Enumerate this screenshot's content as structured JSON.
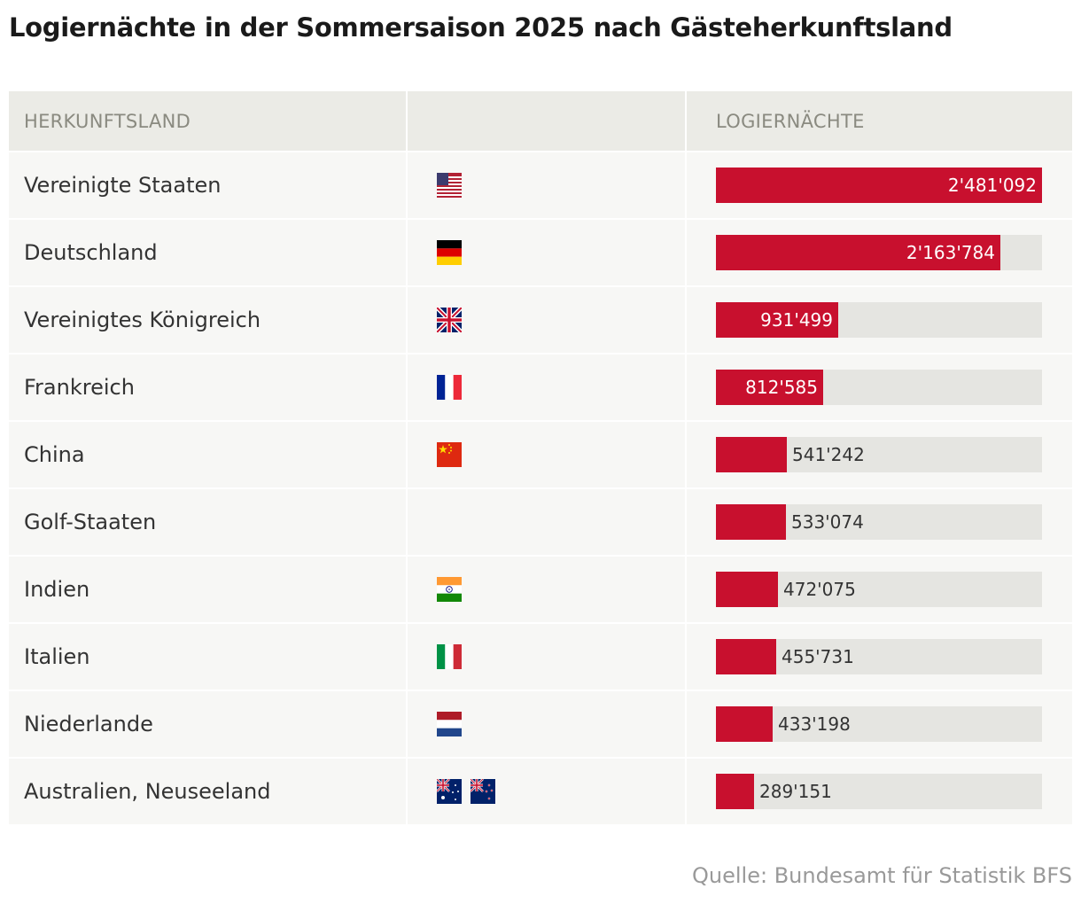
{
  "title": "Logiernächte in der Sommersaison 2025 nach Gästeherkunftsland",
  "header": {
    "col_country": "HERKUNFTSLAND",
    "col_flag": "",
    "col_value": "LOGIERNÄCHTE"
  },
  "source": "Quelle: Bundesamt für Statistik BFS",
  "colors": {
    "bar": "#c8102e",
    "track": "#e5e5e1",
    "header_bg": "#ebebe6",
    "row_bg": "#f7f7f5"
  },
  "chart_data": {
    "type": "bar",
    "orientation": "horizontal",
    "xlim": [
      0,
      2481092
    ],
    "categories": [
      "Vereinigte Staaten",
      "Deutschland",
      "Vereinigtes Königreich",
      "Frankreich",
      "China",
      "Golf-Staaten",
      "Indien",
      "Italien",
      "Niederlande",
      "Australien, Neuseeland"
    ],
    "values": [
      2481092,
      2163784,
      931499,
      812585,
      541242,
      533074,
      472075,
      455731,
      433198,
      289151
    ],
    "labels": [
      "2'481'092",
      "2'163'784",
      "931'499",
      "812'585",
      "541'242",
      "533'074",
      "472'075",
      "455'731",
      "433'198",
      "289'151"
    ],
    "flags": [
      [
        "us-flag-icon"
      ],
      [
        "de-flag-icon"
      ],
      [
        "gb-flag-icon"
      ],
      [
        "fr-flag-icon"
      ],
      [
        "cn-flag-icon"
      ],
      [],
      [
        "in-flag-icon"
      ],
      [
        "it-flag-icon"
      ],
      [
        "nl-flag-icon"
      ],
      [
        "au-flag-icon",
        "nz-flag-icon"
      ]
    ]
  }
}
